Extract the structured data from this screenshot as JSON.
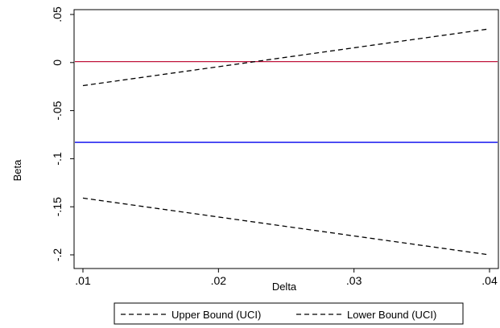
{
  "chart_data": {
    "type": "line",
    "xlabel": "Delta",
    "ylabel": "Beta",
    "xlim": [
      0.01,
      0.04
    ],
    "ylim": [
      -0.2,
      0.06
    ],
    "x_ticks": [
      0.01,
      0.02,
      0.03,
      0.04
    ],
    "x_tick_labels": [
      ".01",
      ".02",
      ".03",
      ".04"
    ],
    "y_ticks": [
      0.05,
      0,
      -0.05,
      -0.1,
      -0.15,
      -0.2
    ],
    "y_tick_labels": [
      ".05",
      "0",
      "-.05",
      "-.1",
      "-.15",
      "-.2"
    ],
    "grid": false,
    "legend_position": "bottom",
    "series": [
      {
        "name": "Upper Bound (UCI)",
        "x": [
          0.01,
          0.04
        ],
        "y": [
          -0.024,
          0.035
        ],
        "color": "#000000",
        "dash": "dashed"
      },
      {
        "name": "Lower Bound (UCI)",
        "x": [
          0.01,
          0.04
        ],
        "y": [
          -0.141,
          -0.2
        ],
        "color": "#000000",
        "dash": "dashed"
      }
    ],
    "reference_lines": [
      {
        "axis": "y",
        "value": 0.001,
        "color": "#c0143c"
      },
      {
        "axis": "y",
        "value": -0.083,
        "color": "#0000ee"
      }
    ]
  }
}
